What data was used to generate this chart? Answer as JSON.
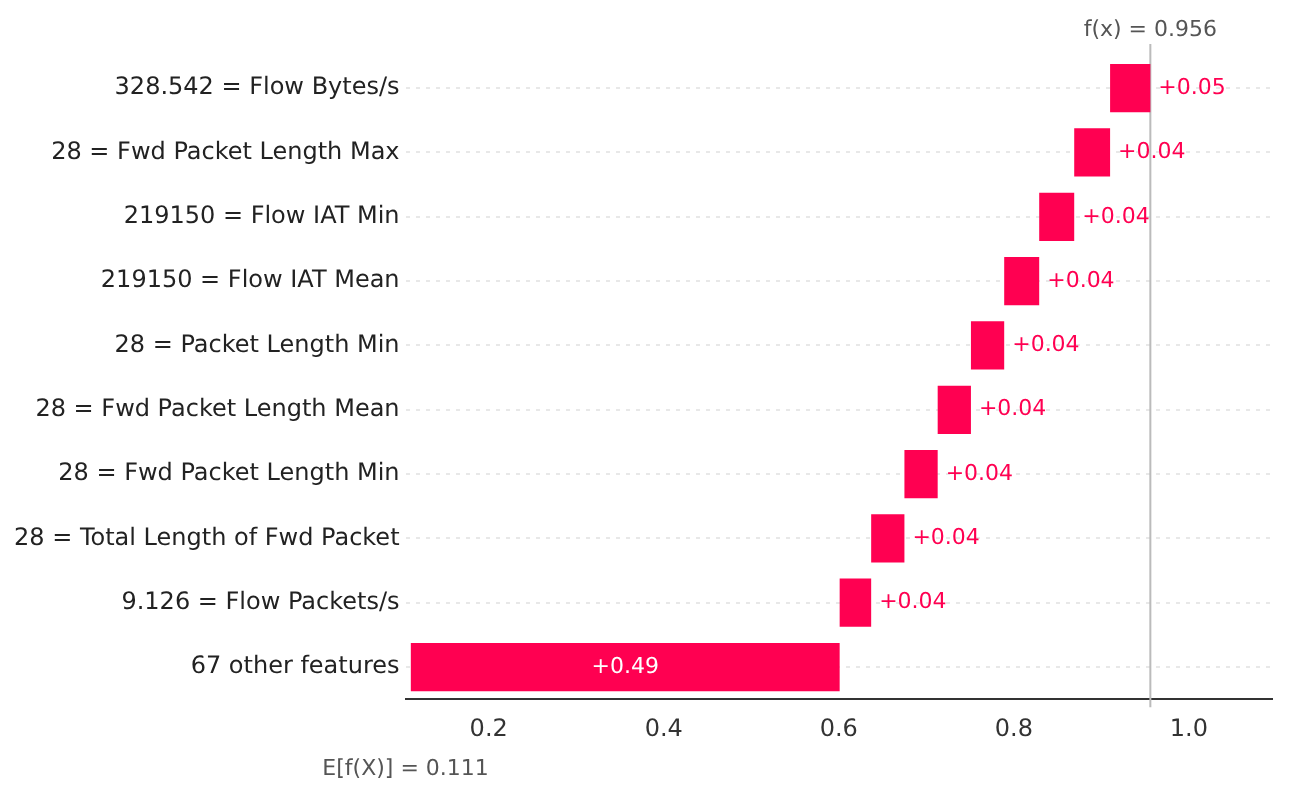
{
  "chart_data": {
    "type": "bar",
    "orientation": "horizontal",
    "categories": [
      "328.542 = Flow Bytes/s",
      "28 = Fwd Packet Length Max",
      "219150 = Flow IAT Min",
      "219150 = Flow IAT Mean",
      "28 = Packet Length Min",
      "28 = Fwd Packet Length Mean",
      "28 = Fwd Packet Length Min",
      "28 = Total Length of Fwd Packet",
      "9.126 = Flow Packets/s",
      "67 other features"
    ],
    "values": [
      0.046,
      0.041,
      0.04,
      0.04,
      0.038,
      0.038,
      0.038,
      0.038,
      0.036,
      0.49
    ],
    "base": [
      0.91,
      0.869,
      0.829,
      0.789,
      0.751,
      0.713,
      0.675,
      0.637,
      0.601,
      0.111
    ],
    "value_labels": [
      "+0.05",
      "+0.04",
      "+0.04",
      "+0.04",
      "+0.04",
      "+0.04",
      "+0.04",
      "+0.04",
      "+0.04",
      "+0.49"
    ],
    "color": "#ff0051",
    "xlim": [
      0.105,
      1.095
    ],
    "xticks": [
      0.2,
      0.4,
      0.6,
      0.8,
      {
        "value": 1.0,
        "label": "1.0"
      }
    ],
    "ref_lines": [
      {
        "axis": "x",
        "value": 0.956,
        "label": "f(x) = 0.956",
        "color": "#bbbbbb"
      }
    ],
    "annotations": [
      "E[f(X)] = 0.111"
    ],
    "grid": "y",
    "legend": false
  }
}
